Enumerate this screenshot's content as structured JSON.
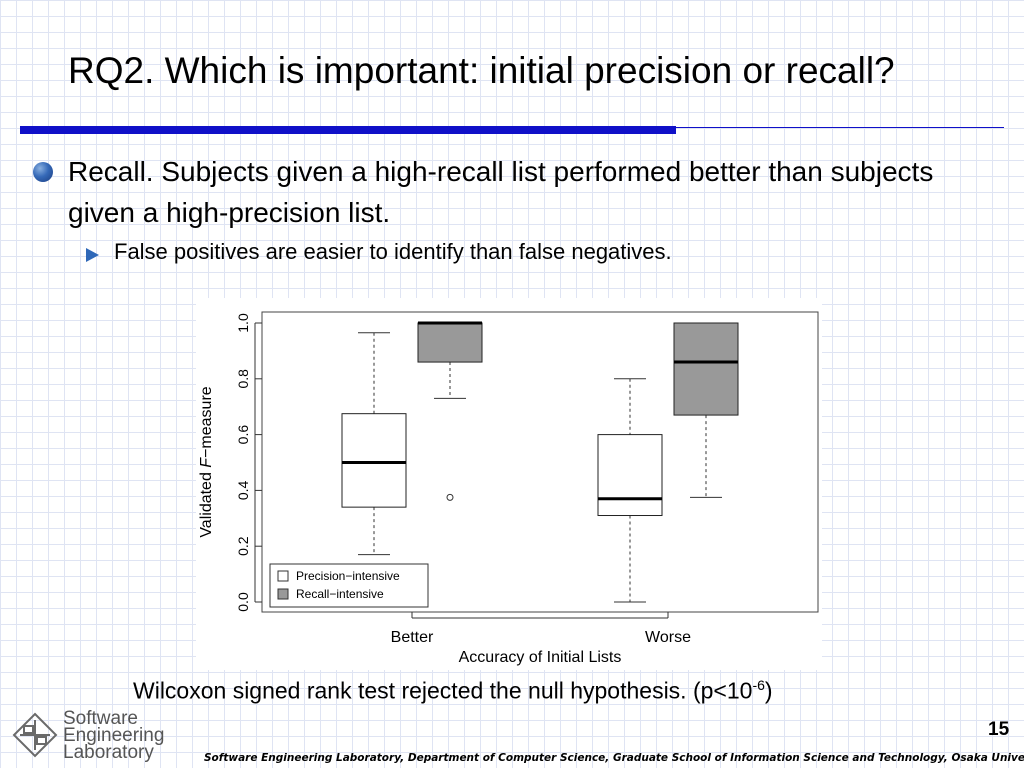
{
  "slide": {
    "title": "RQ2. Which is important: initial precision or recall?",
    "bullet": "Recall.  Subjects given a high-recall list performed better than subjects given a high-precision list.",
    "sub_bullet": "False positives are easier to identify than false negatives.",
    "footnote_main": "Wilcoxon signed rank test rejected the null hypothesis.  (p<10",
    "footnote_exp": "-6",
    "footnote_close": ")",
    "page_number": "15",
    "footer": "Software Engineering Laboratory, Department of Computer Science, Graduate School of Information Science and Technology, Osaka University",
    "logo_lines": [
      "Software",
      "Engineering",
      "Laboratory"
    ]
  },
  "chart_data": {
    "type": "boxplot",
    "xlabel": "Accuracy of Initial Lists",
    "ylabel_prefix": "Validated ",
    "ylabel_italic": "F",
    "ylabel_suffix": "−measure",
    "ylim": [
      0.0,
      1.0
    ],
    "yticks": [
      "0.0",
      "0.2",
      "0.4",
      "0.6",
      "0.8",
      "1.0"
    ],
    "categories": [
      "Better",
      "Worse"
    ],
    "legend": [
      {
        "label": "Precision−intensive",
        "color": "#ffffff"
      },
      {
        "label": "Recall−intensive",
        "color": "#999999"
      }
    ],
    "legend_position": "bottom-left",
    "series": [
      {
        "name": "Precision−intensive",
        "color": "#ffffff",
        "boxes": [
          {
            "category": "Better",
            "min": 0.17,
            "q1": 0.34,
            "median": 0.5,
            "q3": 0.675,
            "max": 0.965,
            "outliers": []
          },
          {
            "category": "Worse",
            "min": 0.0,
            "q1": 0.31,
            "median": 0.37,
            "q3": 0.6,
            "max": 0.8,
            "outliers": []
          }
        ]
      },
      {
        "name": "Recall−intensive",
        "color": "#999999",
        "boxes": [
          {
            "category": "Better",
            "min": 0.73,
            "q1": 0.86,
            "median": 1.0,
            "q3": 1.0,
            "max": 1.0,
            "outliers": [
              0.375
            ]
          },
          {
            "category": "Worse",
            "min": 0.375,
            "q1": 0.67,
            "median": 0.86,
            "q3": 1.0,
            "max": 1.0,
            "outliers": []
          }
        ]
      }
    ]
  }
}
